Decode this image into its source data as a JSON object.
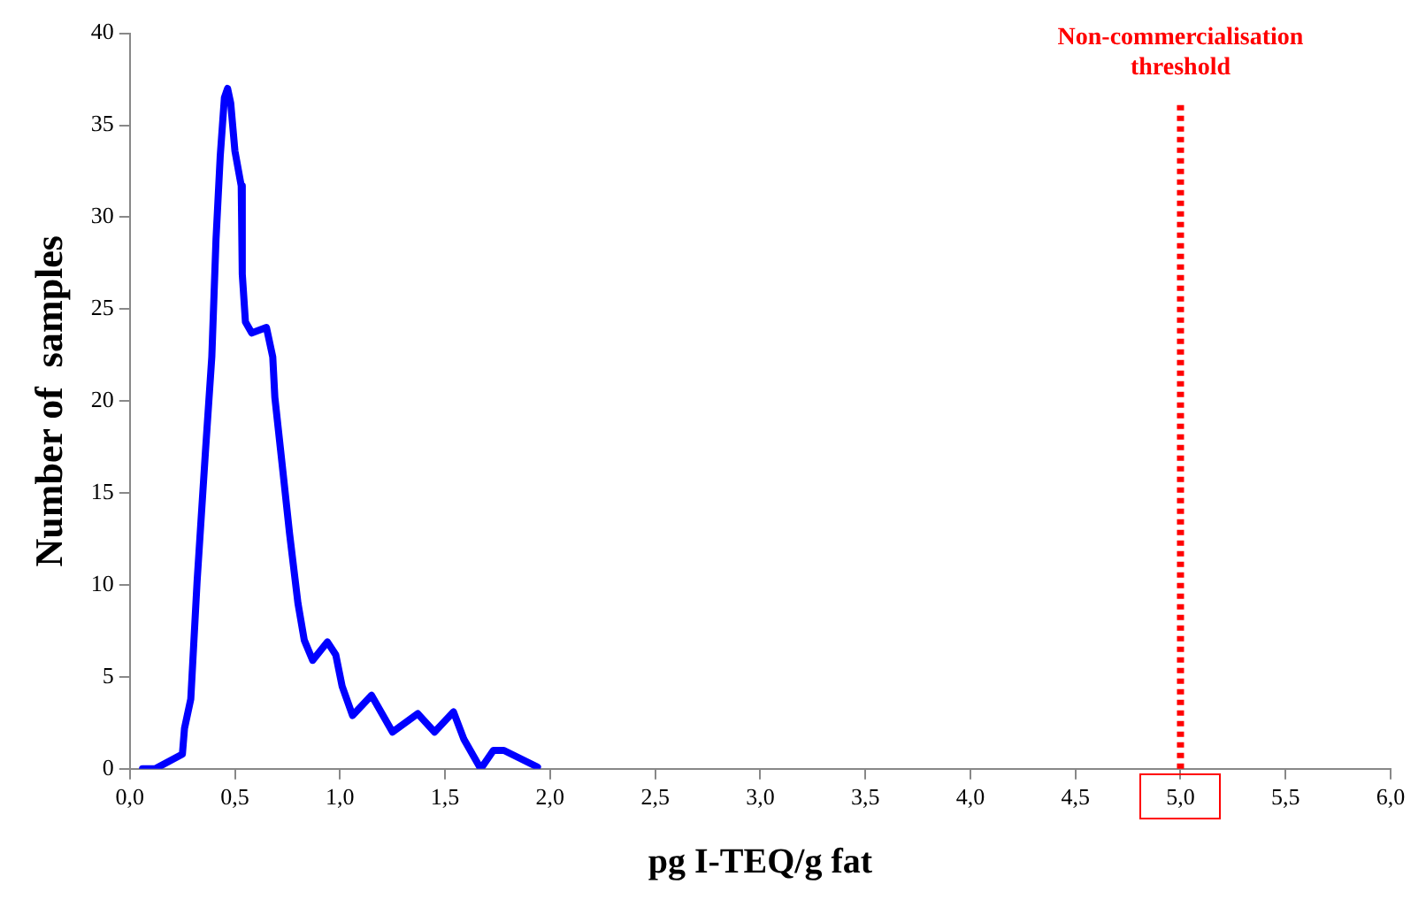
{
  "chart_data": {
    "type": "line",
    "xlabel": "pg I-TEQ/g fat",
    "ylabel": "Number of  samples",
    "series": [
      {
        "color": "#0000ff",
        "x": [
          0.06,
          0.12,
          0.25,
          0.26,
          0.29,
          0.32,
          0.36,
          0.39,
          0.41,
          0.43,
          0.45,
          0.465,
          0.48,
          0.5,
          0.53,
          0.535,
          0.55,
          0.58,
          0.65,
          0.68,
          0.69,
          0.73,
          0.76,
          0.8,
          0.83,
          0.87,
          0.94,
          0.98,
          1.01,
          1.06,
          1.15,
          1.25,
          1.37,
          1.45,
          1.54,
          1.59,
          1.67,
          1.73,
          1.78,
          1.94
        ],
        "values": [
          0,
          0,
          0.8,
          2.2,
          3.8,
          10.2,
          17.3,
          22.4,
          28.8,
          33.3,
          36.5,
          37.0,
          36.2,
          33.6,
          31.7,
          26.9,
          24.3,
          23.7,
          24.0,
          22.4,
          20.2,
          16.0,
          12.8,
          9.0,
          7.0,
          5.9,
          6.9,
          6.2,
          4.5,
          2.9,
          4.0,
          2.0,
          3.0,
          2.0,
          3.1,
          1.6,
          0,
          1.0,
          1.0,
          0.1
        ]
      }
    ],
    "xlim": [
      0,
      6
    ],
    "xticks": [
      {
        "value": 0,
        "label": "0,0"
      },
      {
        "value": 0.5,
        "label": "0,5"
      },
      {
        "value": 1,
        "label": "1,0"
      },
      {
        "value": 1.5,
        "label": "1,5"
      },
      {
        "value": 2,
        "label": "2,0"
      },
      {
        "value": 2.5,
        "label": "2,5"
      },
      {
        "value": 3,
        "label": "3,0"
      },
      {
        "value": 3.5,
        "label": "3,5"
      },
      {
        "value": 4,
        "label": "4,0"
      },
      {
        "value": 4.5,
        "label": "4,5"
      },
      {
        "value": 5,
        "label": "5,0"
      },
      {
        "value": 5.5,
        "label": "5,5"
      },
      {
        "value": 6,
        "label": "6,0"
      }
    ],
    "ylim": [
      0,
      40
    ],
    "yticks": [
      0,
      5,
      10,
      15,
      20,
      25,
      30,
      35,
      40
    ],
    "ref_lines": [
      {
        "axis": "x",
        "value": 5,
        "label": "Non-commercialisation threshold",
        "color": "#ff0000",
        "line_style": "dotted"
      }
    ],
    "grid": false,
    "legend": false,
    "marker": "none",
    "line_style": "solid"
  }
}
